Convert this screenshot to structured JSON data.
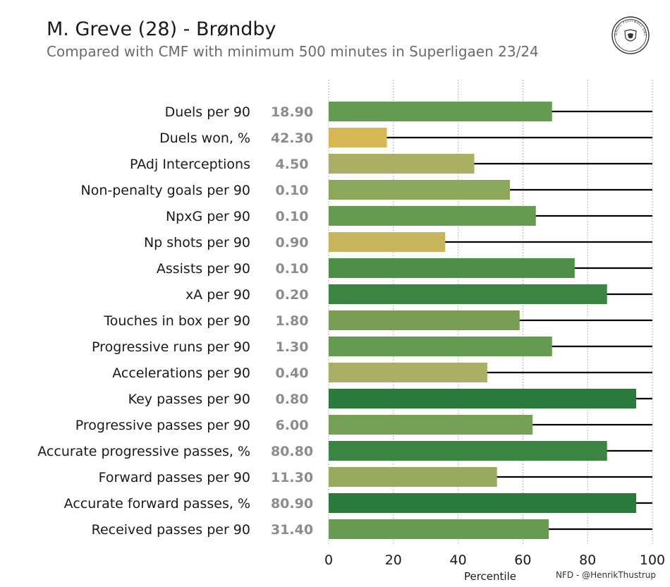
{
  "header": {
    "title": "M. Greve (28) - Brøndby",
    "subtitle": "Compared with CMF with minimum 500 minutes in Superligaen 23/24",
    "credit": "NFD - @HenrikThustrup",
    "logo_text": "NORDIC FOOTBALL DATA"
  },
  "colors": {
    "high": "#2a7b3b",
    "mid": "#7a9d55",
    "low": "#d4b84e",
    "track": "#000000",
    "grid": "#b8b8b8",
    "value_text": "#8c8c8c"
  },
  "chart_data": {
    "type": "bar",
    "orientation": "horizontal",
    "title": "M. Greve (28) - Brøndby",
    "subtitle": "Compared with CMF with minimum 500 minutes in Superligaen 23/24",
    "xlabel": "Percentile",
    "xlim": [
      0,
      100
    ],
    "xticks": [
      0,
      20,
      40,
      60,
      80,
      100
    ],
    "grid": "vertical dotted",
    "categories": [
      "Duels per 90",
      "Duels won, %",
      "PAdj Interceptions",
      "Non-penalty goals per 90",
      "NpxG per 90",
      "Np shots per 90",
      "Assists per 90",
      "xA per 90",
      "Touches in box per 90",
      "Progressive runs per 90",
      "Accelerations per 90",
      "Key passes per 90",
      "Progressive passes per 90",
      "Accurate progressive passes, %",
      "Forward passes per 90",
      "Accurate forward passes, %",
      "Received passes per 90"
    ],
    "raw_values": [
      "18.90",
      "42.30",
      "4.50",
      "0.10",
      "0.10",
      "0.90",
      "0.10",
      "0.20",
      "1.80",
      "1.30",
      "0.40",
      "0.80",
      "6.00",
      "80.80",
      "11.30",
      "80.90",
      "31.40"
    ],
    "percentiles": [
      69,
      18,
      45,
      56,
      64,
      36,
      76,
      86,
      59,
      69,
      49,
      95,
      63,
      86,
      52,
      95,
      68
    ],
    "bar_colors": [
      "#659a51",
      "#d6b955",
      "#a9b065",
      "#8ba85a",
      "#659a51",
      "#c6b55a",
      "#4e8f47",
      "#3b8442",
      "#7a9d55",
      "#659a51",
      "#a9b065",
      "#2a7b3b",
      "#76a057",
      "#3b8442",
      "#98aa5d",
      "#2a7b3b",
      "#689b52"
    ]
  }
}
